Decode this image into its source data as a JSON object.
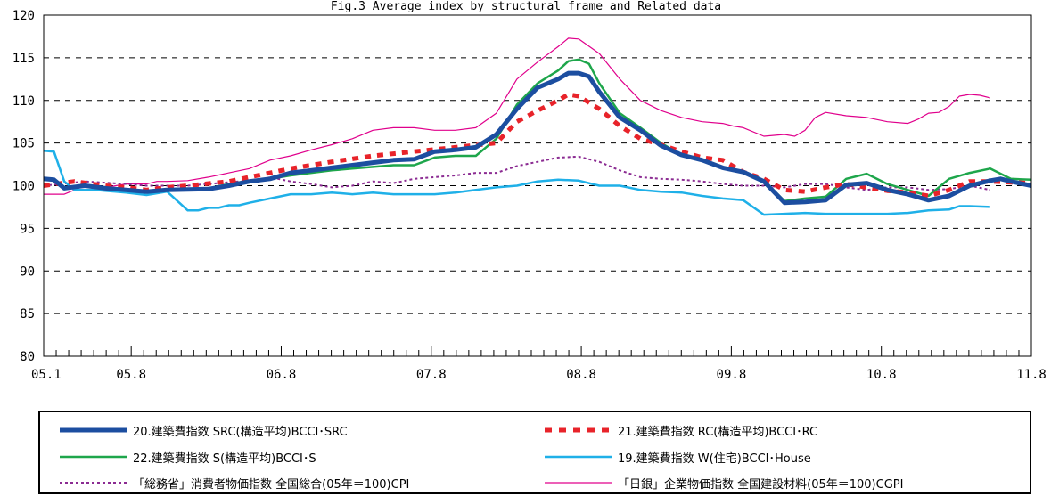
{
  "chart_data": {
    "type": "line",
    "title": "Fig.3 Average index by structural frame and Related data",
    "xlabel": "",
    "ylabel": "",
    "ylim": [
      80,
      120
    ],
    "yticks": [
      80,
      85,
      90,
      95,
      100,
      105,
      110,
      115,
      120
    ],
    "xlim": [
      "05.1",
      "11.8"
    ],
    "xticks": [
      "05.1",
      "05.8",
      "06.8",
      "07.8",
      "08.8",
      "09.8",
      "10.8",
      "11.8"
    ],
    "x_start": "2005-01",
    "grid": "dashed horizontal",
    "legend": "bottom",
    "series": [
      {
        "name": "「日銀」企業物価指数 全国建設材料(05年＝100)CGPI",
        "color": "#e0008c",
        "width": 1.2,
        "dash": "",
        "values": [
          [
            0,
            99.0
          ],
          [
            2,
            99.0
          ],
          [
            3,
            99.5
          ],
          [
            4,
            100.0
          ],
          [
            6,
            99.8
          ],
          [
            8,
            100.2
          ],
          [
            10,
            100.2
          ],
          [
            11,
            100.5
          ],
          [
            12,
            100.5
          ],
          [
            14,
            100.6
          ],
          [
            16,
            101.0
          ],
          [
            18,
            101.5
          ],
          [
            20,
            102.0
          ],
          [
            22,
            103.0
          ],
          [
            24,
            103.5
          ],
          [
            26,
            104.2
          ],
          [
            28,
            104.8
          ],
          [
            30,
            105.5
          ],
          [
            32,
            106.5
          ],
          [
            34,
            106.8
          ],
          [
            36,
            106.8
          ],
          [
            38,
            106.5
          ],
          [
            40,
            106.5
          ],
          [
            42,
            106.8
          ],
          [
            44,
            108.5
          ],
          [
            46,
            112.5
          ],
          [
            48,
            114.5
          ],
          [
            50,
            116.3
          ],
          [
            51,
            117.3
          ],
          [
            52,
            117.2
          ],
          [
            54,
            115.5
          ],
          [
            56,
            112.5
          ],
          [
            58,
            110.0
          ],
          [
            60,
            108.8
          ],
          [
            62,
            108.0
          ],
          [
            64,
            107.5
          ],
          [
            66,
            107.3
          ],
          [
            67,
            107.0
          ],
          [
            68,
            106.8
          ],
          [
            70,
            105.8
          ],
          [
            72,
            106.0
          ],
          [
            73,
            105.8
          ],
          [
            74,
            106.5
          ],
          [
            75,
            108.0
          ],
          [
            76,
            108.6
          ],
          [
            78,
            108.2
          ],
          [
            80,
            108.0
          ],
          [
            82,
            107.5
          ],
          [
            84,
            107.3
          ],
          [
            85,
            107.8
          ],
          [
            86,
            108.5
          ],
          [
            87,
            108.6
          ],
          [
            88,
            109.3
          ],
          [
            89,
            110.5
          ],
          [
            90,
            110.7
          ],
          [
            91,
            110.6
          ],
          [
            92,
            110.3
          ]
        ]
      },
      {
        "name": "「総務省」消費者物価指数 全国総合(05年＝100)CPI",
        "color": "#8b2b92",
        "width": 2.0,
        "dash": "3,3",
        "values": [
          [
            0,
            100.0
          ],
          [
            4,
            100.5
          ],
          [
            8,
            100.2
          ],
          [
            10,
            100.0
          ],
          [
            14,
            100.0
          ],
          [
            17,
            100.3
          ],
          [
            19,
            100.5
          ],
          [
            21,
            100.5
          ],
          [
            22,
            101.0
          ],
          [
            24,
            100.5
          ],
          [
            26,
            100.2
          ],
          [
            28,
            99.8
          ],
          [
            30,
            100.0
          ],
          [
            32,
            100.5
          ],
          [
            34,
            100.3
          ],
          [
            36,
            100.8
          ],
          [
            38,
            101.0
          ],
          [
            40,
            101.2
          ],
          [
            42,
            101.5
          ],
          [
            44,
            101.5
          ],
          [
            46,
            102.3
          ],
          [
            48,
            102.8
          ],
          [
            50,
            103.3
          ],
          [
            52,
            103.4
          ],
          [
            54,
            102.8
          ],
          [
            56,
            101.8
          ],
          [
            58,
            101.0
          ],
          [
            60,
            100.8
          ],
          [
            62,
            100.7
          ],
          [
            64,
            100.5
          ],
          [
            66,
            100.2
          ],
          [
            68,
            100.0
          ],
          [
            70,
            100.0
          ],
          [
            72,
            99.8
          ],
          [
            74,
            100.2
          ],
          [
            76,
            100.2
          ],
          [
            78,
            99.8
          ],
          [
            80,
            99.5
          ],
          [
            82,
            99.8
          ],
          [
            84,
            99.8
          ],
          [
            86,
            99.5
          ],
          [
            88,
            99.6
          ],
          [
            90,
            100.0
          ],
          [
            92,
            99.5
          ]
        ]
      },
      {
        "name": "19.建築費指数 W(住宅)BCCI･House",
        "color": "#1fb0e8",
        "width": 2.5,
        "dash": "",
        "values": [
          [
            0,
            104.1
          ],
          [
            1,
            104.0
          ],
          [
            2,
            100.5
          ],
          [
            3,
            99.5
          ],
          [
            5,
            99.5
          ],
          [
            8,
            99.2
          ],
          [
            10,
            98.9
          ],
          [
            12,
            99.3
          ],
          [
            14,
            97.1
          ],
          [
            15,
            97.1
          ],
          [
            16,
            97.4
          ],
          [
            17,
            97.4
          ],
          [
            18,
            97.7
          ],
          [
            19,
            97.7
          ],
          [
            20,
            98.0
          ],
          [
            22,
            98.5
          ],
          [
            24,
            99.0
          ],
          [
            26,
            99.0
          ],
          [
            28,
            99.2
          ],
          [
            30,
            99.0
          ],
          [
            32,
            99.2
          ],
          [
            34,
            99.0
          ],
          [
            36,
            99.0
          ],
          [
            38,
            99.0
          ],
          [
            40,
            99.2
          ],
          [
            42,
            99.5
          ],
          [
            44,
            99.8
          ],
          [
            46,
            100.0
          ],
          [
            48,
            100.5
          ],
          [
            50,
            100.7
          ],
          [
            52,
            100.6
          ],
          [
            54,
            100.0
          ],
          [
            56,
            100.0
          ],
          [
            58,
            99.5
          ],
          [
            60,
            99.3
          ],
          [
            62,
            99.2
          ],
          [
            64,
            98.8
          ],
          [
            66,
            98.5
          ],
          [
            68,
            98.3
          ],
          [
            70,
            96.6
          ],
          [
            72,
            96.7
          ],
          [
            74,
            96.8
          ],
          [
            76,
            96.7
          ],
          [
            78,
            96.7
          ],
          [
            80,
            96.7
          ],
          [
            82,
            96.7
          ],
          [
            84,
            96.8
          ],
          [
            86,
            97.1
          ],
          [
            88,
            97.2
          ],
          [
            89,
            97.6
          ],
          [
            90,
            97.6
          ],
          [
            92,
            97.5
          ]
        ]
      },
      {
        "name": "22.建築費指数 S(構造平均)BCCI･S",
        "color": "#1ea64b",
        "width": 2.5,
        "dash": "",
        "values": [
          [
            0,
            100.9
          ],
          [
            1,
            100.7
          ],
          [
            2,
            99.8
          ],
          [
            4,
            100.0
          ],
          [
            6,
            99.8
          ],
          [
            8,
            99.5
          ],
          [
            10,
            99.3
          ],
          [
            12,
            99.5
          ],
          [
            16,
            99.7
          ],
          [
            18,
            100.2
          ],
          [
            20,
            100.6
          ],
          [
            22,
            100.8
          ],
          [
            24,
            101.2
          ],
          [
            26,
            101.5
          ],
          [
            28,
            101.8
          ],
          [
            30,
            102.0
          ],
          [
            32,
            102.2
          ],
          [
            34,
            102.4
          ],
          [
            36,
            102.4
          ],
          [
            38,
            103.3
          ],
          [
            40,
            103.5
          ],
          [
            42,
            103.5
          ],
          [
            44,
            105.5
          ],
          [
            46,
            109.5
          ],
          [
            48,
            112.0
          ],
          [
            50,
            113.5
          ],
          [
            51,
            114.6
          ],
          [
            52,
            114.8
          ],
          [
            53,
            114.3
          ],
          [
            54,
            112.0
          ],
          [
            56,
            108.5
          ],
          [
            58,
            106.8
          ],
          [
            60,
            105.0
          ],
          [
            62,
            103.6
          ],
          [
            64,
            103.0
          ],
          [
            66,
            102.2
          ],
          [
            68,
            101.6
          ],
          [
            70,
            100.6
          ],
          [
            72,
            98.2
          ],
          [
            74,
            98.5
          ],
          [
            76,
            98.7
          ],
          [
            78,
            100.8
          ],
          [
            80,
            101.4
          ],
          [
            82,
            100.2
          ],
          [
            84,
            99.5
          ],
          [
            86,
            98.8
          ],
          [
            88,
            100.8
          ],
          [
            90,
            101.5
          ],
          [
            92,
            102.0
          ],
          [
            94,
            100.8
          ],
          [
            96,
            100.7
          ]
        ]
      },
      {
        "name": "21.建築費指数 RC(構造平均)BCCI･RC",
        "color": "#e8232a",
        "width": 5.0,
        "dash": "7,7",
        "values": [
          [
            0,
            100.0
          ],
          [
            3,
            100.5
          ],
          [
            6,
            100.0
          ],
          [
            8,
            99.8
          ],
          [
            10,
            99.5
          ],
          [
            12,
            99.8
          ],
          [
            14,
            100.0
          ],
          [
            18,
            100.5
          ],
          [
            20,
            101.0
          ],
          [
            24,
            102.0
          ],
          [
            28,
            102.8
          ],
          [
            32,
            103.5
          ],
          [
            36,
            104.0
          ],
          [
            40,
            104.5
          ],
          [
            44,
            105.0
          ],
          [
            46,
            107.5
          ],
          [
            48,
            108.8
          ],
          [
            50,
            110.0
          ],
          [
            51,
            110.7
          ],
          [
            52,
            110.5
          ],
          [
            54,
            109.0
          ],
          [
            56,
            107.0
          ],
          [
            58,
            105.5
          ],
          [
            60,
            104.8
          ],
          [
            62,
            104.0
          ],
          [
            64,
            103.3
          ],
          [
            66,
            103.0
          ],
          [
            68,
            101.6
          ],
          [
            70,
            100.8
          ],
          [
            72,
            99.5
          ],
          [
            74,
            99.3
          ],
          [
            76,
            99.8
          ],
          [
            78,
            100.2
          ],
          [
            80,
            99.8
          ],
          [
            82,
            99.4
          ],
          [
            84,
            99.2
          ],
          [
            86,
            98.8
          ],
          [
            88,
            99.5
          ],
          [
            90,
            100.5
          ],
          [
            92,
            100.5
          ],
          [
            96,
            100.3
          ]
        ]
      },
      {
        "name": "20.建築費指数 SRC(構造平均)BCCI･SRC",
        "color": "#1c4ea0",
        "width": 5.0,
        "dash": "",
        "values": [
          [
            0,
            100.8
          ],
          [
            1,
            100.7
          ],
          [
            2,
            99.7
          ],
          [
            4,
            100.0
          ],
          [
            6,
            99.7
          ],
          [
            8,
            99.5
          ],
          [
            10,
            99.3
          ],
          [
            12,
            99.5
          ],
          [
            16,
            99.6
          ],
          [
            18,
            100.0
          ],
          [
            20,
            100.5
          ],
          [
            22,
            100.8
          ],
          [
            24,
            101.5
          ],
          [
            26,
            101.8
          ],
          [
            28,
            102.1
          ],
          [
            30,
            102.4
          ],
          [
            32,
            102.7
          ],
          [
            34,
            103.0
          ],
          [
            36,
            103.1
          ],
          [
            38,
            104.0
          ],
          [
            40,
            104.2
          ],
          [
            42,
            104.5
          ],
          [
            44,
            106.0
          ],
          [
            46,
            109.0
          ],
          [
            48,
            111.5
          ],
          [
            50,
            112.5
          ],
          [
            51,
            113.2
          ],
          [
            52,
            113.2
          ],
          [
            53,
            112.8
          ],
          [
            54,
            111.0
          ],
          [
            56,
            108.0
          ],
          [
            58,
            106.5
          ],
          [
            60,
            104.7
          ],
          [
            62,
            103.6
          ],
          [
            64,
            103.0
          ],
          [
            66,
            102.1
          ],
          [
            68,
            101.6
          ],
          [
            70,
            100.5
          ],
          [
            72,
            98.0
          ],
          [
            74,
            98.1
          ],
          [
            76,
            98.3
          ],
          [
            78,
            100.1
          ],
          [
            80,
            100.3
          ],
          [
            82,
            99.5
          ],
          [
            84,
            99.0
          ],
          [
            86,
            98.3
          ],
          [
            88,
            98.8
          ],
          [
            90,
            100.0
          ],
          [
            92,
            100.6
          ],
          [
            93,
            100.8
          ],
          [
            94,
            100.5
          ],
          [
            96,
            100.0
          ]
        ]
      }
    ]
  },
  "legend": {
    "items": [
      {
        "label": "20.建築費指数 SRC(構造平均)BCCI･SRC",
        "color": "#1c4ea0"
      },
      {
        "label": "21.建築費指数 RC(構造平均)BCCI･RC",
        "color": "#e8232a"
      },
      {
        "label": "22.建築費指数 S(構造平均)BCCI･S",
        "color": "#1ea64b"
      },
      {
        "label": "19.建築費指数 W(住宅)BCCI･House",
        "color": "#1fb0e8"
      },
      {
        "label": "「総務省」消費者物価指数 全国総合(05年＝100)CPI",
        "color": "#8b2b92"
      },
      {
        "label": "「日銀」企業物価指数 全国建設材料(05年＝100)CGPI",
        "color": "#e0008c"
      }
    ]
  }
}
